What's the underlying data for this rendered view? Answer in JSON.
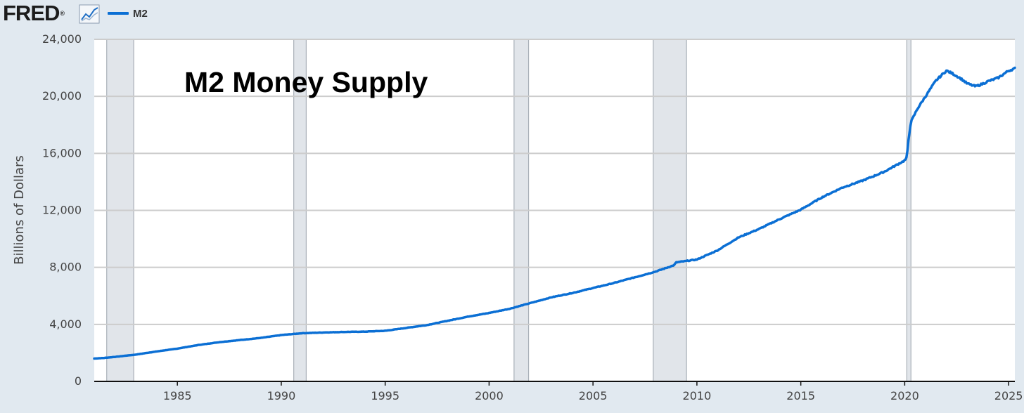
{
  "header": {
    "logo_text": "FRED",
    "logo_mark": "®",
    "graph_icon": "line-graph-icon",
    "legend_label": "M2"
  },
  "colors": {
    "series": "#0b6fd4",
    "background": "#e1e9f0",
    "plot_background": "#ffffff",
    "recession_shading": "#e1e5ea",
    "grid": "#cccccc"
  },
  "chart_data": {
    "type": "line",
    "title": "M2 Money Supply",
    "xlabel": "",
    "ylabel": "Billions of Dollars",
    "xlim": [
      1981.0,
      2025.3
    ],
    "ylim": [
      0,
      24000
    ],
    "x_ticks": [
      "1985",
      "1990",
      "1995",
      "2000",
      "2005",
      "2010",
      "2015",
      "2020",
      "2025"
    ],
    "y_ticks": [
      "0",
      "4,000",
      "8,000",
      "12,000",
      "16,000",
      "20,000",
      "24,000"
    ],
    "grid": true,
    "legend_position": "top-left",
    "recessions": [
      [
        1981.6,
        1982.9
      ],
      [
        1990.6,
        1991.2
      ],
      [
        2001.2,
        2001.9
      ],
      [
        2007.9,
        2009.5
      ],
      [
        2020.1,
        2020.3
      ]
    ],
    "series": [
      {
        "name": "M2",
        "x": [
          1981.0,
          1981.5,
          1982.0,
          1982.5,
          1983.0,
          1984.0,
          1985.0,
          1986.0,
          1987.0,
          1988.0,
          1989.0,
          1990.0,
          1991.0,
          1992.0,
          1993.0,
          1994.0,
          1995.0,
          1996.0,
          1997.0,
          1998.0,
          1999.0,
          2000.0,
          2001.0,
          2002.0,
          2003.0,
          2004.0,
          2005.0,
          2006.0,
          2007.0,
          2008.0,
          2008.9,
          2009.0,
          2009.5,
          2010.0,
          2011.0,
          2012.0,
          2013.0,
          2014.0,
          2015.0,
          2016.0,
          2017.0,
          2018.0,
          2019.0,
          2020.0,
          2020.1,
          2020.2,
          2020.3,
          2020.6,
          2021.0,
          2021.5,
          2022.0,
          2022.3,
          2022.7,
          2023.0,
          2023.4,
          2023.7,
          2024.0,
          2024.5,
          2025.0,
          2025.3
        ],
        "y": [
          1600,
          1650,
          1720,
          1800,
          1880,
          2100,
          2300,
          2550,
          2750,
          2900,
          3050,
          3250,
          3380,
          3430,
          3470,
          3490,
          3550,
          3750,
          3950,
          4250,
          4550,
          4800,
          5100,
          5500,
          5900,
          6200,
          6550,
          6900,
          7300,
          7700,
          8150,
          8350,
          8450,
          8550,
          9200,
          10100,
          10700,
          11400,
          12050,
          12900,
          13600,
          14100,
          14700,
          15500,
          15700,
          17200,
          18200,
          19100,
          20000,
          21100,
          21800,
          21600,
          21250,
          20900,
          20700,
          20850,
          21050,
          21300,
          21800,
          21950
        ]
      }
    ]
  }
}
